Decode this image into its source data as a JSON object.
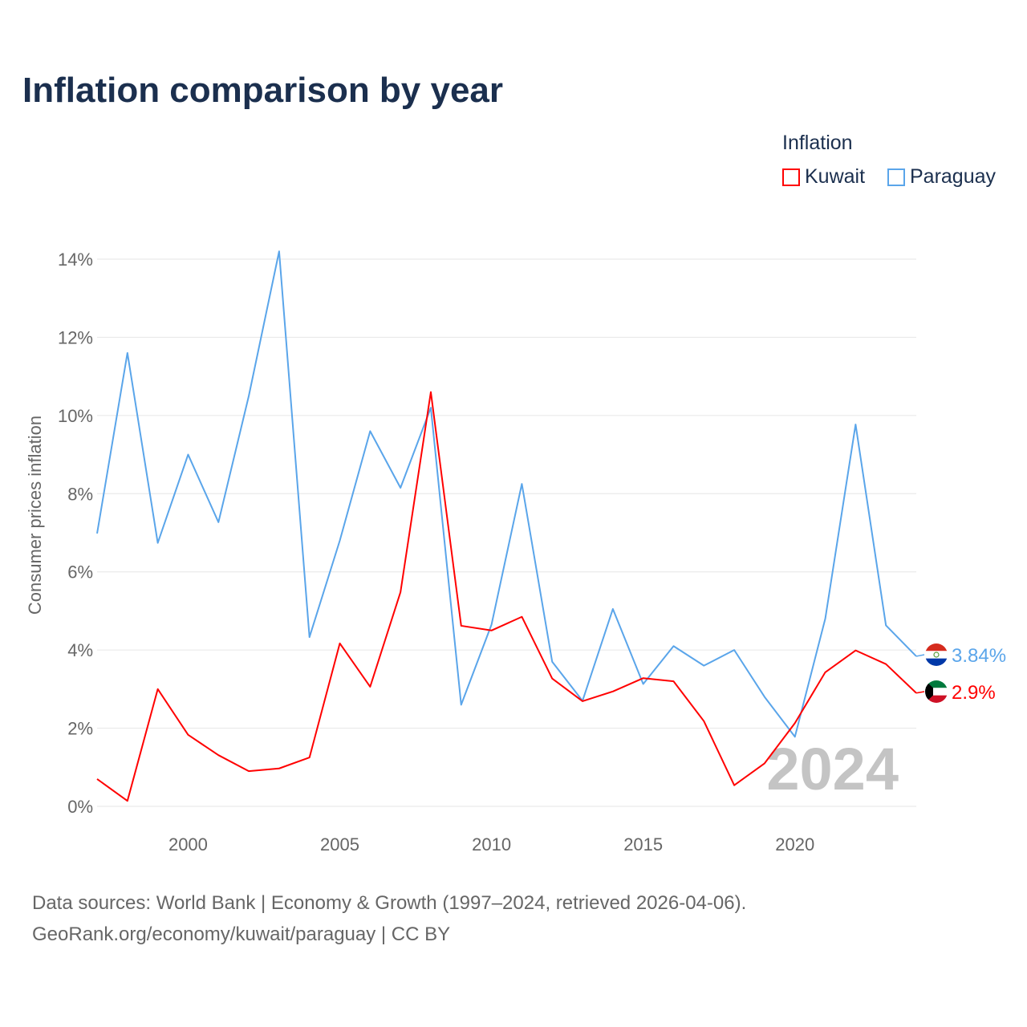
{
  "chart_data": {
    "type": "line",
    "title": "Inflation comparison by year",
    "ylabel": "Consumer prices inflation",
    "xlabel": "",
    "legend_title": "Inflation",
    "legend_placement": "top-right",
    "ylim": [
      0,
      14
    ],
    "xlim": [
      1997,
      2024
    ],
    "y_ticks": [
      "0%",
      "2%",
      "4%",
      "6%",
      "8%",
      "10%",
      "12%",
      "14%"
    ],
    "x_ticks": [
      "2000",
      "2005",
      "2010",
      "2015",
      "2020"
    ],
    "grid": true,
    "year_watermark": "2024",
    "x": [
      1997,
      1998,
      1999,
      2000,
      2001,
      2002,
      2003,
      2004,
      2005,
      2006,
      2007,
      2008,
      2009,
      2010,
      2011,
      2012,
      2013,
      2014,
      2015,
      2016,
      2017,
      2018,
      2019,
      2020,
      2021,
      2022,
      2023,
      2024
    ],
    "series": [
      {
        "name": "Kuwait",
        "color": "#ff0000",
        "end_label": "2.9%",
        "values": [
          0.7,
          0.14,
          3.0,
          1.83,
          1.31,
          0.9,
          0.97,
          1.25,
          4.17,
          3.06,
          5.48,
          10.6,
          4.62,
          4.5,
          4.85,
          3.27,
          2.69,
          2.94,
          3.28,
          3.2,
          2.18,
          0.54,
          1.1,
          2.13,
          3.43,
          3.99,
          3.64,
          2.9
        ]
      },
      {
        "name": "Paraguay",
        "color": "#5aa5ea",
        "end_label": "3.84%",
        "values": [
          6.98,
          11.6,
          6.74,
          9.0,
          7.27,
          10.5,
          14.2,
          4.33,
          6.8,
          9.6,
          8.15,
          10.2,
          2.6,
          4.65,
          8.25,
          3.7,
          2.7,
          5.05,
          3.13,
          4.1,
          3.6,
          4.0,
          2.8,
          1.78,
          4.8,
          9.77,
          4.63,
          3.84
        ]
      }
    ]
  },
  "footer": {
    "line1": "Data sources: World Bank | Economy & Growth (1997–2024, retrieved 2026-04-06).",
    "line2": "GeoRank.org/economy/kuwait/paraguay | CC BY"
  }
}
